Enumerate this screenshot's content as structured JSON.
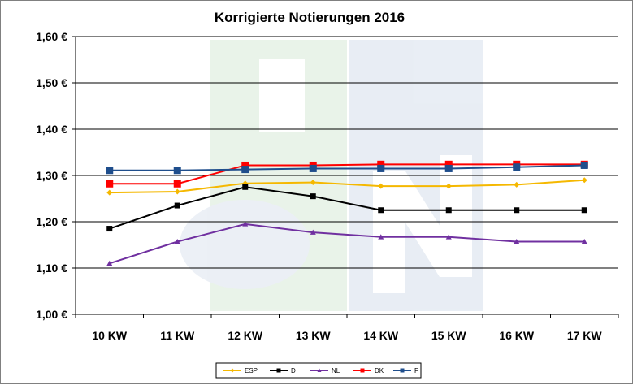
{
  "chart_data": {
    "type": "line",
    "title": "Korrigierte Notierungen 2016",
    "xlabel": "",
    "ylabel": "",
    "categories": [
      "10 KW",
      "11 KW",
      "12 KW",
      "13 KW",
      "14 KW",
      "15 KW",
      "16 KW",
      "17 KW"
    ],
    "y_ticks": [
      "1,00 €",
      "1,10 €",
      "1,20 €",
      "1,30 €",
      "1,40 €",
      "1,50 €",
      "1,60 €"
    ],
    "ylim": [
      1.0,
      1.6
    ],
    "grid": "horizontal",
    "legend_position": "bottom",
    "series": [
      {
        "name": "ESP",
        "color": "#F5B800",
        "marker": "diamond",
        "values": [
          1.263,
          1.265,
          1.283,
          1.285,
          1.277,
          1.277,
          1.28,
          1.29
        ]
      },
      {
        "name": "D",
        "color": "#000000",
        "marker": "square",
        "values": [
          1.185,
          1.235,
          1.275,
          1.255,
          1.225,
          1.225,
          1.225,
          1.225
        ]
      },
      {
        "name": "NL",
        "color": "#7030A0",
        "marker": "triangle",
        "values": [
          1.11,
          1.157,
          1.195,
          1.177,
          1.167,
          1.167,
          1.157,
          1.157
        ]
      },
      {
        "name": "DK",
        "color": "#FF0000",
        "marker": "square",
        "values": [
          1.282,
          1.282,
          1.322,
          1.322,
          1.324,
          1.324,
          1.324,
          1.324
        ]
      },
      {
        "name": "F",
        "color": "#1F4E8C",
        "marker": "square",
        "values": [
          1.311,
          1.311,
          1.313,
          1.315,
          1.315,
          1.315,
          1.318,
          1.322
        ]
      }
    ]
  }
}
